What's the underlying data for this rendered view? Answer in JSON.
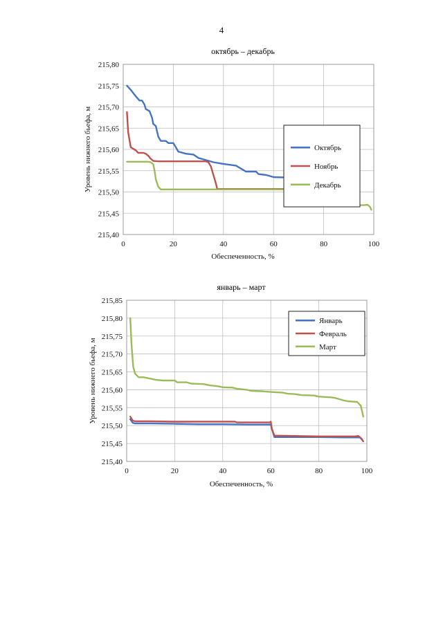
{
  "page": {
    "number": "4"
  },
  "chart_data": [
    {
      "type": "line",
      "title": "октябрь – декабрь",
      "xlabel": "Обеспеченность, %",
      "ylabel": "Уровень нижнего бьефа, м",
      "xlim": [
        0,
        100
      ],
      "ylim": [
        215.4,
        215.8
      ],
      "x_ticks": [
        "0",
        "20",
        "40",
        "60",
        "80",
        "100"
      ],
      "y_ticks": [
        "215,40",
        "215,45",
        "215,50",
        "215,55",
        "215,60",
        "215,65",
        "215,70",
        "215,75",
        "215,80"
      ],
      "grid": true,
      "legend_position": "right",
      "series": [
        {
          "name": "Октябрь",
          "color": "#4472C4",
          "points": [
            [
              1.5,
              215.75
            ],
            [
              3,
              215.74
            ],
            [
              5,
              215.725
            ],
            [
              6.5,
              215.715
            ],
            [
              7.5,
              215.715
            ],
            [
              8.5,
              215.705
            ],
            [
              9,
              215.695
            ],
            [
              10.5,
              215.69
            ],
            [
              11.5,
              215.675
            ],
            [
              12,
              215.66
            ],
            [
              13,
              215.655
            ],
            [
              14,
              215.63
            ],
            [
              15,
              215.62
            ],
            [
              17,
              215.62
            ],
            [
              18,
              215.615
            ],
            [
              20,
              215.615
            ],
            [
              21,
              215.605
            ],
            [
              22,
              215.595
            ],
            [
              25,
              215.59
            ],
            [
              28,
              215.588
            ],
            [
              30,
              215.58
            ],
            [
              33,
              215.575
            ],
            [
              36,
              215.57
            ],
            [
              40,
              215.566
            ],
            [
              45,
              215.562
            ],
            [
              47,
              215.555
            ],
            [
              49,
              215.548
            ],
            [
              53,
              215.548
            ],
            [
              54,
              215.542
            ],
            [
              57,
              215.54
            ],
            [
              60,
              215.535
            ],
            [
              65,
              215.534
            ],
            [
              70,
              215.532
            ],
            [
              74,
              215.531
            ],
            [
              76,
              215.525
            ],
            [
              78,
              215.52
            ],
            [
              81,
              215.518
            ],
            [
              83,
              215.512
            ],
            [
              85,
              215.51
            ],
            [
              86,
              215.505
            ],
            [
              88,
              215.505
            ],
            [
              89,
              215.497
            ],
            [
              91,
              215.495
            ],
            [
              92,
              215.488
            ],
            [
              93,
              215.475
            ],
            [
              94,
              215.467
            ]
          ]
        },
        {
          "name": "Ноябрь",
          "color": "#C0504D",
          "points": [
            [
              1.5,
              215.688
            ],
            [
              2,
              215.64
            ],
            [
              3,
              215.605
            ],
            [
              5,
              215.598
            ],
            [
              6,
              215.592
            ],
            [
              8,
              215.592
            ],
            [
              9,
              215.59
            ],
            [
              10,
              215.585
            ],
            [
              11,
              215.578
            ],
            [
              12,
              215.573
            ],
            [
              14,
              215.572
            ],
            [
              20,
              215.572
            ],
            [
              30,
              215.572
            ],
            [
              33,
              215.572
            ],
            [
              34,
              215.57
            ],
            [
              35,
              215.56
            ],
            [
              36,
              215.54
            ],
            [
              37,
              215.52
            ],
            [
              37.5,
              215.507
            ],
            [
              45,
              215.507
            ],
            [
              60,
              215.507
            ],
            [
              70,
              215.507
            ],
            [
              77,
              215.507
            ],
            [
              78,
              215.508
            ],
            [
              78.5,
              215.49
            ],
            [
              79,
              215.468
            ],
            [
              80,
              215.468
            ]
          ]
        },
        {
          "name": "Декабрь",
          "color": "#9BBB59",
          "points": [
            [
              1.5,
              215.571
            ],
            [
              10,
              215.571
            ],
            [
              11,
              215.57
            ],
            [
              12,
              215.565
            ],
            [
              12.5,
              215.55
            ],
            [
              13,
              215.53
            ],
            [
              14,
              215.512
            ],
            [
              15,
              215.506
            ],
            [
              20,
              215.506
            ],
            [
              30,
              215.506
            ],
            [
              40,
              215.506
            ],
            [
              50,
              215.506
            ],
            [
              60,
              215.506
            ],
            [
              70,
              215.506
            ],
            [
              73.5,
              215.505
            ],
            [
              74,
              215.49
            ],
            [
              74.5,
              215.47
            ],
            [
              76,
              215.469
            ],
            [
              80,
              215.469
            ],
            [
              90,
              215.469
            ],
            [
              96,
              215.469
            ],
            [
              97.5,
              215.47
            ],
            [
              98.5,
              215.465
            ],
            [
              99,
              215.458
            ]
          ]
        }
      ]
    },
    {
      "type": "line",
      "title": "январь – март",
      "xlabel": "Обеспеченность, %",
      "ylabel": "Уровень нижнего бьефа, м",
      "xlim": [
        0,
        100
      ],
      "ylim": [
        215.4,
        215.85
      ],
      "x_ticks": [
        "0",
        "20",
        "40",
        "60",
        "80",
        "100"
      ],
      "y_ticks": [
        "215,40",
        "215,45",
        "215,50",
        "215,55",
        "215,60",
        "215,65",
        "215,70",
        "215,75",
        "215,80",
        "215,85"
      ],
      "grid": true,
      "legend_position": "top-right",
      "series": [
        {
          "name": "Январь",
          "color": "#4472C4",
          "points": [
            [
              1.5,
              215.518
            ],
            [
              2.5,
              215.508
            ],
            [
              3.5,
              215.506
            ],
            [
              10,
              215.506
            ],
            [
              20,
              215.505
            ],
            [
              30,
              215.504
            ],
            [
              40,
              215.504
            ],
            [
              50,
              215.503
            ],
            [
              55,
              215.503
            ],
            [
              60,
              215.503
            ],
            [
              60.5,
              215.49
            ],
            [
              61.5,
              215.468
            ],
            [
              70,
              215.468
            ],
            [
              80,
              215.468
            ],
            [
              90,
              215.467
            ],
            [
              97,
              215.467
            ],
            [
              98,
              215.462
            ]
          ]
        },
        {
          "name": "Февраль",
          "color": "#C0504D",
          "points": [
            [
              1.5,
              215.525
            ],
            [
              2.5,
              215.514
            ],
            [
              3.5,
              215.512
            ],
            [
              10,
              215.512
            ],
            [
              20,
              215.511
            ],
            [
              30,
              215.511
            ],
            [
              40,
              215.511
            ],
            [
              45,
              215.511
            ],
            [
              46,
              215.509
            ],
            [
              55,
              215.509
            ],
            [
              59.5,
              215.509
            ],
            [
              60,
              215.511
            ],
            [
              60.5,
              215.49
            ],
            [
              61.5,
              215.472
            ],
            [
              70,
              215.471
            ],
            [
              80,
              215.47
            ],
            [
              90,
              215.47
            ],
            [
              95,
              215.47
            ],
            [
              96.5,
              215.471
            ],
            [
              97.5,
              215.465
            ],
            [
              98.5,
              215.456
            ]
          ]
        },
        {
          "name": "Март",
          "color": "#9BBB59",
          "points": [
            [
              1.5,
              215.8
            ],
            [
              2,
              215.73
            ],
            [
              2.7,
              215.665
            ],
            [
              3.5,
              215.645
            ],
            [
              5,
              215.635
            ],
            [
              7,
              215.635
            ],
            [
              10,
              215.631
            ],
            [
              12,
              215.628
            ],
            [
              15,
              215.626
            ],
            [
              20,
              215.626
            ],
            [
              21,
              215.621
            ],
            [
              25,
              215.621
            ],
            [
              27,
              215.617
            ],
            [
              32,
              215.616
            ],
            [
              35,
              215.612
            ],
            [
              38,
              215.61
            ],
            [
              40,
              215.607
            ],
            [
              44,
              215.606
            ],
            [
              46,
              215.603
            ],
            [
              50,
              215.6
            ],
            [
              52,
              215.597
            ],
            [
              56,
              215.596
            ],
            [
              60,
              215.594
            ],
            [
              65,
              215.592
            ],
            [
              67,
              215.589
            ],
            [
              70,
              215.588
            ],
            [
              73,
              215.585
            ],
            [
              78,
              215.584
            ],
            [
              80,
              215.581
            ],
            [
              85,
              215.579
            ],
            [
              87,
              215.577
            ],
            [
              90,
              215.571
            ],
            [
              92,
              215.568
            ],
            [
              96,
              215.566
            ],
            [
              97.5,
              215.555
            ],
            [
              98,
              215.54
            ],
            [
              98.5,
              215.525
            ]
          ]
        }
      ]
    }
  ]
}
